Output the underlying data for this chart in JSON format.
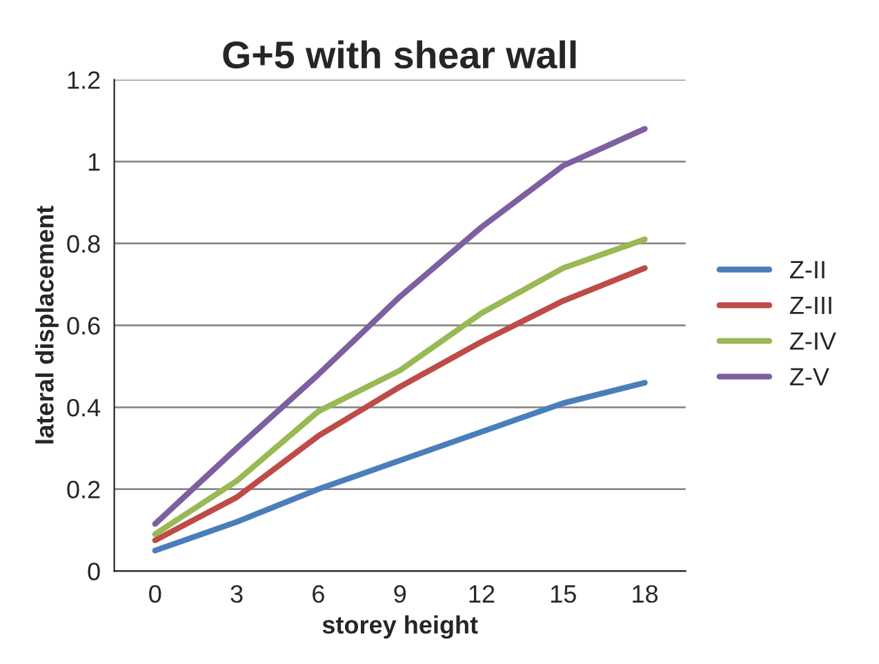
{
  "chart_data": {
    "type": "line",
    "title": "G+5 with shear wall",
    "xlabel": "storey height",
    "ylabel": "lateral displacement",
    "categories": [
      "0",
      "3",
      "6",
      "9",
      "12",
      "15",
      "18"
    ],
    "series": [
      {
        "name": "Z-II",
        "color": "#4a7ebb",
        "values": [
          0.05,
          0.12,
          0.2,
          0.27,
          0.34,
          0.41,
          0.46
        ]
      },
      {
        "name": "Z-III",
        "color": "#be4b48",
        "values": [
          0.075,
          0.18,
          0.33,
          0.45,
          0.56,
          0.66,
          0.74
        ]
      },
      {
        "name": "Z-IV",
        "color": "#98b954",
        "values": [
          0.09,
          0.22,
          0.39,
          0.49,
          0.63,
          0.74,
          0.81
        ]
      },
      {
        "name": "Z-V",
        "color": "#7d60a0",
        "values": [
          0.115,
          0.3,
          0.48,
          0.67,
          0.84,
          0.99,
          1.08
        ]
      }
    ],
    "ylim": [
      0,
      1.2
    ],
    "yticks": [
      0,
      0.2,
      0.4,
      0.6,
      0.8,
      1,
      1.2
    ],
    "grid": "y",
    "legend": "right",
    "marker": "none",
    "line_style": "solid"
  }
}
